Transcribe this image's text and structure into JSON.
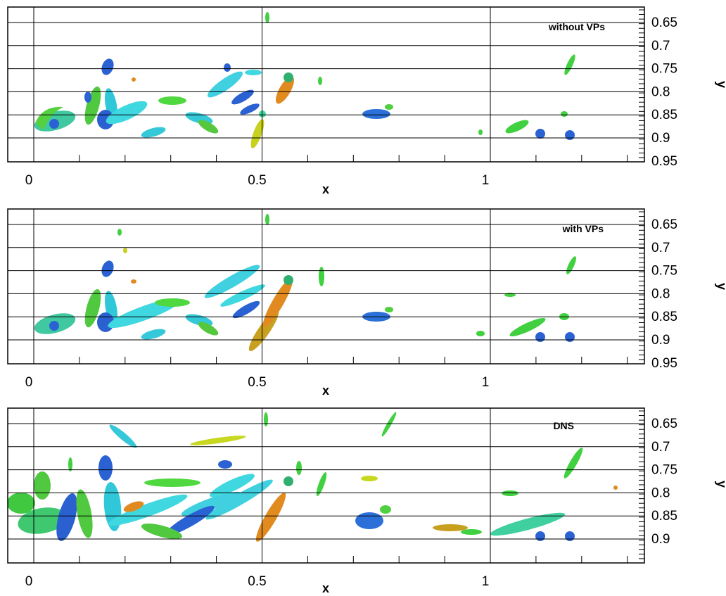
{
  "figure": {
    "panels": [
      {
        "label": "without VPs",
        "xlabel": "x",
        "ylabel": "y",
        "x_ticks": [
          "0",
          "0.5",
          "1"
        ],
        "y_ticks": [
          "0.65",
          "0.7",
          "0.75",
          "0.8",
          "0.85",
          "0.9",
          "0.95"
        ]
      },
      {
        "label": "with VPs",
        "xlabel": "x",
        "ylabel": "y",
        "x_ticks": [
          "0",
          "0.5",
          "1"
        ],
        "y_ticks": [
          "0.65",
          "0.7",
          "0.75",
          "0.8",
          "0.85",
          "0.9",
          "0.95"
        ]
      },
      {
        "label": "DNS",
        "xlabel": "x",
        "ylabel": "y",
        "x_ticks": [
          "0",
          "0.5",
          "1"
        ],
        "y_ticks": [
          "0.65",
          "0.7",
          "0.75",
          "0.8",
          "0.85",
          "0.9"
        ]
      }
    ],
    "colors": {
      "blue": "#1f5fd0",
      "cyan": "#35d0e0",
      "green": "#40d040",
      "yellow": "#c8d820",
      "orange": "#e08a20"
    }
  }
}
